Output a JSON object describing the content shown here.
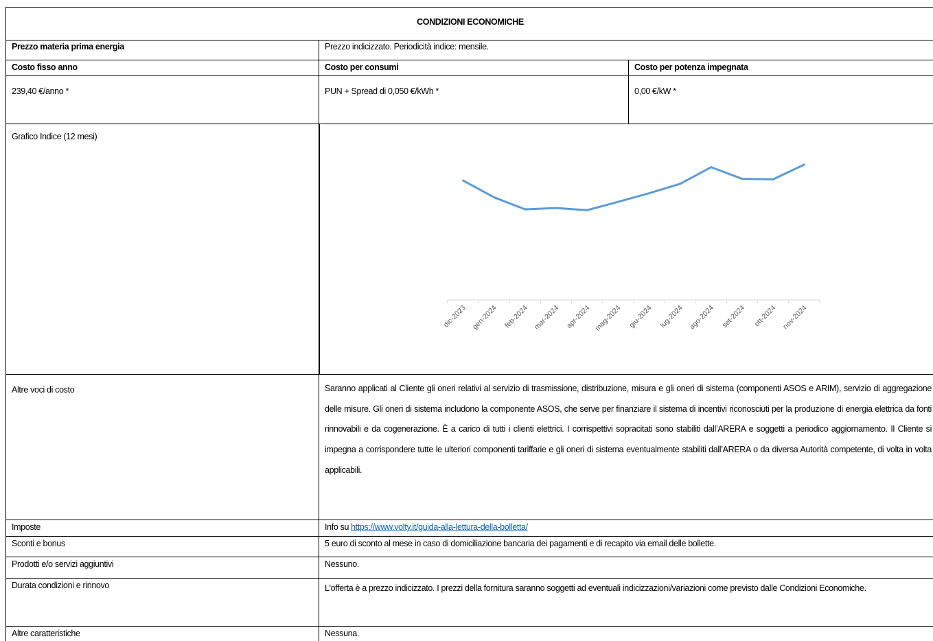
{
  "header": "CONDIZIONI ECONOMICHE",
  "price": {
    "label": "Prezzo materia prima energia",
    "value": "Prezzo indicizzato. Periodicità indice: mensile."
  },
  "costs": {
    "headers": [
      "Costo fisso anno",
      "Costo per consumi",
      "Costo per potenza impegnata"
    ],
    "values": [
      "239,40 €/anno *",
      "PUN + Spread di 0,050 €/kWh *",
      "0,00 €/kW *"
    ]
  },
  "chart_label": "Grafico Indice (12 mesi)",
  "chart_data": {
    "type": "line",
    "categories": [
      "dic-2023",
      "gen-2024",
      "feb-2024",
      "mar-2024",
      "apr-2024",
      "mag-2024",
      "giu-2024",
      "lug-2024",
      "ago-2024",
      "set-2024",
      "ott-2024",
      "nov-2024"
    ],
    "values": [
      115.5,
      99.2,
      87.6,
      88.9,
      86.8,
      94.9,
      103.2,
      112.3,
      128.4,
      117.1,
      116.7,
      130.9
    ],
    "ylim": [
      0,
      160
    ],
    "color": "#5b9bd5"
  },
  "other_costs": {
    "label": "Altre voci di costo",
    "text": "Saranno applicati al Cliente gli oneri relativi al servizio di trasmissione, distribuzione, misura e gli oneri di sistema (componenti ASOS e ARIM), servizio di aggregazione delle misure. Gli oneri di sistema includono la componente ASOS, che serve per finanziare il sistema di incentivi riconosciuti per la produzione di energia elettrica da fonti rinnovabili e da cogenerazione. È a carico di tutti i clienti elettrici. I corrispettivi sopracitati sono stabiliti dall’ARERA e soggetti a periodico aggiornamento. Il Cliente si impegna a corrispondere tutte le ulteriori componenti tariffarie e gli oneri di sistema eventualmente stabiliti dall’ARERA o da diversa Autorità competente, di volta in volta applicabili."
  },
  "taxes": {
    "label": "Imposte",
    "prefix": "Info su",
    "link": "https://www.volty.it/guida-alla-lettura-della-bolletta/"
  },
  "rows": [
    {
      "label": "Sconti e bonus",
      "text": "5 euro di sconto al mese in caso di domiciliazione bancaria dei pagamenti e di recapito via email delle bollette."
    },
    {
      "label": "Prodotti e/o servizi aggiuntivi",
      "text": "Nessuno."
    },
    {
      "label": "Durata condizioni e rinnovo",
      "text": "L'offerta è a prezzo indicizzato. I prezzi della fornitura saranno soggetti ad eventuali indicizzazioni/variazioni come previsto dalle Condizioni Economiche."
    },
    {
      "label": "Altre caratteristiche",
      "text": "Nessuna."
    }
  ]
}
